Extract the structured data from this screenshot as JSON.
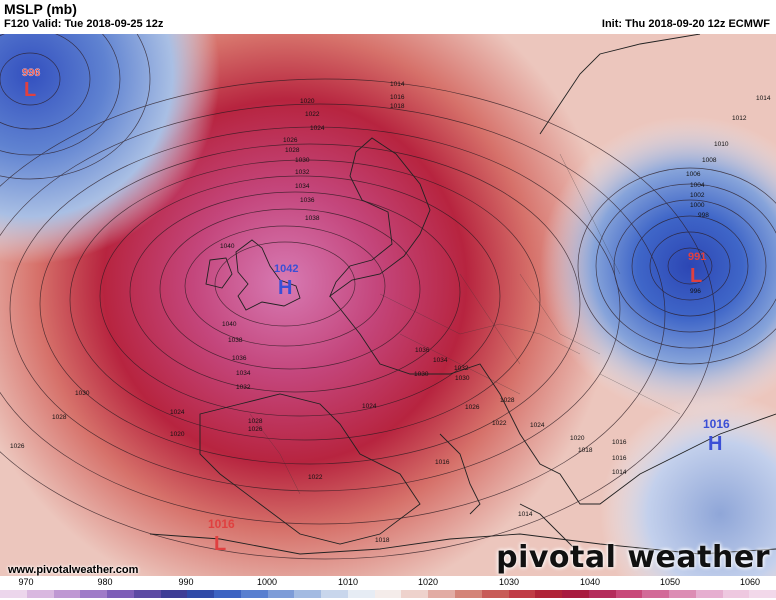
{
  "header": {
    "title": "MSLP (mb)",
    "valid": "F120 Valid: Tue 2018-09-25 12z",
    "init": "Init: Thu 2018-09-20 12z ECMWF"
  },
  "footer": {
    "site": "www.pivotalweather.com",
    "brand": "pivotal weather"
  },
  "pressure_centers": [
    {
      "type": "L",
      "value": "996",
      "color": "#e04040"
    },
    {
      "type": "H",
      "value": "1042",
      "color": "#3a4fd6"
    },
    {
      "type": "L",
      "value": "991",
      "color": "#e04040"
    },
    {
      "type": "H",
      "value": "1016",
      "color": "#3a4fd6"
    },
    {
      "type": "L",
      "value": "1016",
      "color": "#e04040"
    }
  ],
  "isobar_labels": [
    "1014",
    "1016",
    "1018",
    "1020",
    "1022",
    "1024",
    "1026",
    "1028",
    "1030",
    "1032",
    "1034",
    "1036",
    "1038",
    "1040",
    "1040",
    "1038",
    "1036",
    "1034",
    "1032",
    "1030",
    "1028",
    "1026",
    "1024",
    "1020",
    "1026",
    "1030",
    "1028",
    "1036",
    "1034",
    "1030",
    "1032",
    "1024",
    "1022",
    "1026",
    "1028",
    "1024",
    "1020",
    "1018",
    "1016",
    "1016",
    "1014",
    "1014",
    "1022",
    "1018",
    "1016",
    "1014",
    "1012",
    "1010",
    "1008",
    "1006",
    "1004",
    "1002",
    "1000",
    "998",
    "996"
  ],
  "colorbar": {
    "labels": [
      "970",
      "980",
      "990",
      "1000",
      "1010",
      "1020",
      "1030",
      "1040",
      "1050",
      "1060"
    ],
    "colors": [
      "#ecd6ec",
      "#d9b8e0",
      "#bf98d3",
      "#9f7bc8",
      "#7d5eb8",
      "#5c4aa4",
      "#3d3d96",
      "#2f4aa8",
      "#3c63c2",
      "#587fd0",
      "#7d9cd8",
      "#a3bbe2",
      "#c8d6ec",
      "#e6ecf4",
      "#f4ecea",
      "#eed2cc",
      "#e2aca4",
      "#d48478",
      "#c85c58",
      "#c03c46",
      "#b02438",
      "#a81c40",
      "#b42c5c",
      "#c8487a",
      "#d26a98",
      "#dc8cb4",
      "#e6aed0",
      "#eec8e0",
      "#f2d8ea"
    ],
    "accent_low": "#2a3fa8",
    "accent_high": "#b0203a"
  }
}
